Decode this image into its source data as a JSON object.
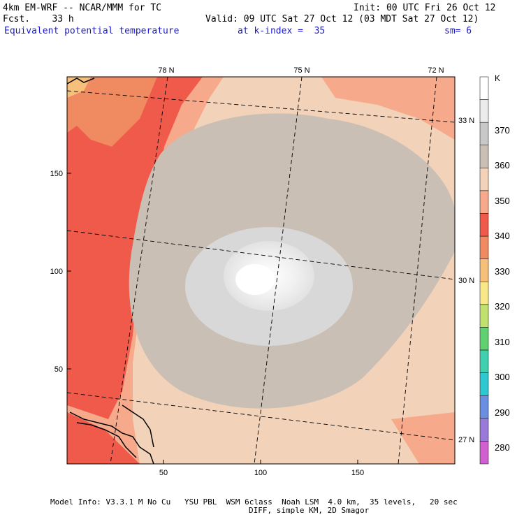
{
  "header": {
    "model": "4km EM-WRF -- NCAR/MMM for TC",
    "init": "Init: 00 UTC Fri 26 Oct 12",
    "fcst": "Fcst.    33 h",
    "valid": "Valid: 09 UTC Sat 27 Oct 12 (03 MDT Sat 27 Oct 12)",
    "field": "Equivalent potential temperature",
    "kindex": "at k-index =  35",
    "sm": "sm= 6"
  },
  "axes": {
    "left_ticks": [
      "150",
      "100",
      "50"
    ],
    "bottom_ticks": [
      "50",
      "100",
      "150"
    ],
    "top_lon": [
      "78 N",
      "75 N",
      "72 N"
    ],
    "right_lat": [
      "33 N",
      "30 N",
      "27 N"
    ]
  },
  "colorbar": {
    "unit": "K",
    "labels": [
      "370",
      "360",
      "350",
      "340",
      "330",
      "320",
      "310",
      "300",
      "290",
      "280"
    ],
    "colors": [
      "#ffffff",
      "#ececec",
      "#c8c8c8",
      "#c9bfb5",
      "#f2d2b8",
      "#f7a98c",
      "#f05a4a",
      "#f08a60",
      "#f7c07a",
      "#f8e88a",
      "#c0e070",
      "#60d070",
      "#40d0b0",
      "#30c8d0",
      "#6a8ee0",
      "#9a7ad8",
      "#d060d0"
    ]
  },
  "footer": {
    "line1": "Model Info: V3.3.1 M No Cu   YSU PBL  WSM 6class  Noah LSM  4.0 km,  35 levels,   20 sec",
    "line2": "DIFF, simple KM, 2D Smagor"
  }
}
